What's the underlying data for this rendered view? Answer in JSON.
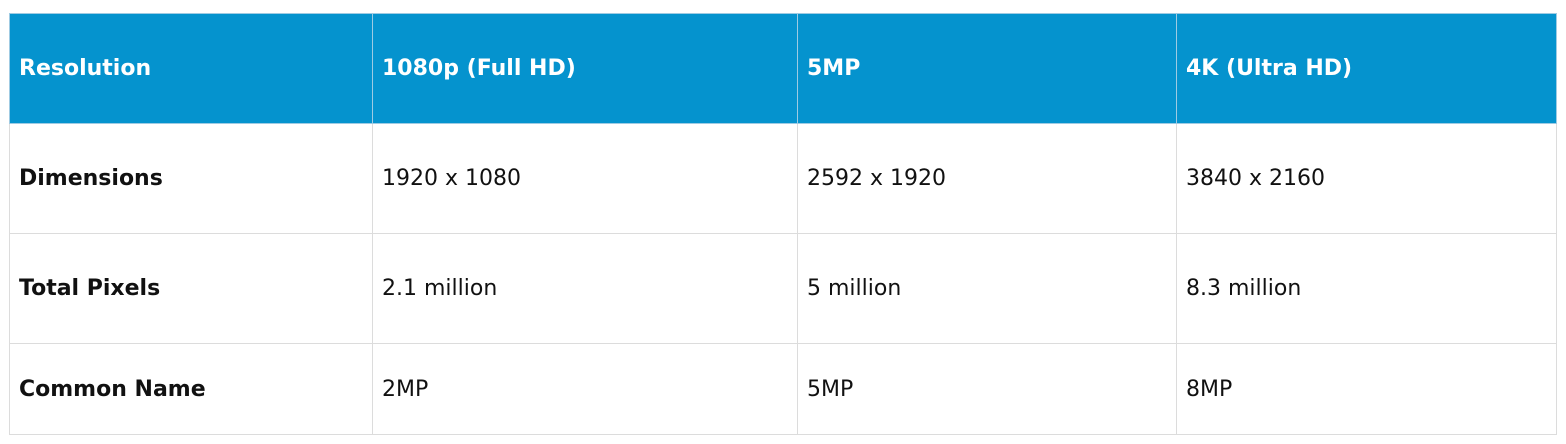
{
  "colors": {
    "header_bg": "#0593ce",
    "header_text": "#ffffff",
    "border": "#dcdcdc"
  },
  "table": {
    "headers": [
      "Resolution",
      "1080p (Full HD)",
      "5MP",
      "4K (Ultra HD)"
    ],
    "rows": [
      [
        "Dimensions",
        "1920 x 1080",
        "2592 x 1920",
        "3840 x 2160"
      ],
      [
        "Total Pixels",
        "2.1 million",
        "5 million",
        "8.3 million"
      ],
      [
        "Common Name",
        "2MP",
        "5MP",
        "8MP"
      ]
    ]
  }
}
